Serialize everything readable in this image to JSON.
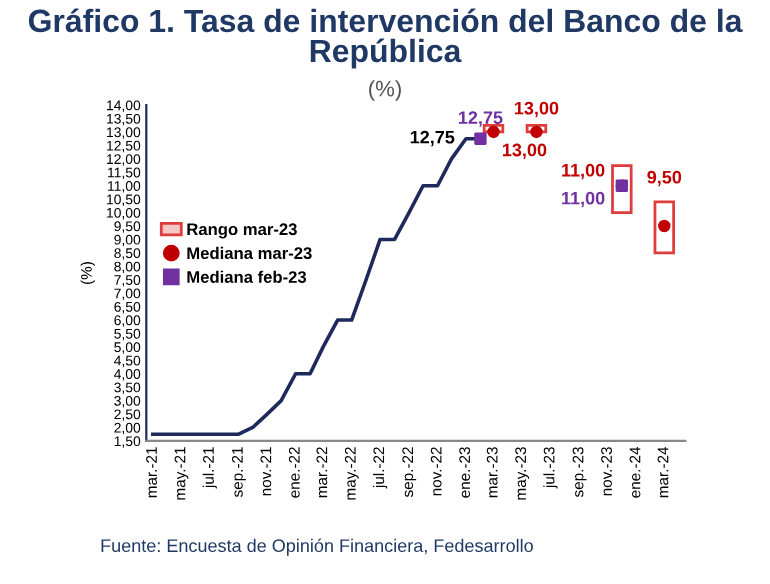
{
  "chart_data": {
    "type": "line",
    "title": "Gráfico 1. Tasa de intervención del Banco de la República",
    "subtitle": "(%)",
    "ylabel": "(%)",
    "annotations": [
      "Fuente: Encuesta de Opinión Financiera, Fedesarrollo"
    ],
    "series": [
      {
        "color": "#1f2a5c",
        "x": [
          "2021-03",
          "2021-04",
          "2021-05",
          "2021-06",
          "2021-07",
          "2021-08",
          "2021-09",
          "2021-10",
          "2021-11",
          "2021-12",
          "2022-01",
          "2022-02",
          "2022-03",
          "2022-04",
          "2022-05",
          "2022-06",
          "2022-07",
          "2022-08",
          "2022-09",
          "2022-10",
          "2022-11",
          "2022-12",
          "2023-01",
          "2023-02"
        ],
        "values": [
          1.75,
          1.75,
          1.75,
          1.75,
          1.75,
          1.75,
          1.75,
          2.0,
          2.5,
          3.0,
          4.0,
          4.0,
          5.0,
          6.0,
          6.0,
          7.5,
          9.0,
          9.0,
          10.0,
          11.0,
          11.0,
          12.0,
          12.75,
          12.75
        ],
        "value_labels": [
          null,
          null,
          null,
          null,
          null,
          null,
          null,
          null,
          null,
          null,
          null,
          null,
          null,
          null,
          null,
          null,
          null,
          null,
          null,
          null,
          null,
          null,
          "12,75",
          null
        ]
      },
      {
        "type": "bar",
        "name": "Rango mar-23",
        "color": "#e03c3c",
        "x": [
          "2023-03",
          "2023-06",
          "2023-12",
          "2024-03"
        ],
        "base": [
          13.0,
          13.0,
          10.0,
          8.5
        ],
        "values": [
          0.25,
          0.25,
          1.75,
          1.9
        ]
      },
      {
        "type": "scatter",
        "name": "Mediana mar-23",
        "color": "#c00000",
        "marker": "circle",
        "x": [
          "2023-03",
          "2023-06",
          "2023-12",
          "2024-03"
        ],
        "values": [
          13.0,
          13.0,
          11.0,
          9.5
        ],
        "value_labels": [
          "13,00",
          "13,00",
          "11,00",
          "9,50"
        ]
      },
      {
        "type": "scatter",
        "name": "Mediana feb-23",
        "color": "#7030a0",
        "marker": "square",
        "x": [
          "2023-02",
          "2023-12"
        ],
        "values": [
          12.75,
          11.0
        ],
        "value_labels": [
          "12,75",
          "11,00"
        ]
      }
    ],
    "xlim": [
      "2021-02-15",
      "2024-04-15"
    ],
    "xticks": [
      {
        "value": "2021-03",
        "label": "mar.-21"
      },
      {
        "value": "2021-05",
        "label": "may.-21"
      },
      {
        "value": "2021-07",
        "label": "jul.-21"
      },
      {
        "value": "2021-09",
        "label": "sep.-21"
      },
      {
        "value": "2021-11",
        "label": "nov.-21"
      },
      {
        "value": "2022-01",
        "label": "ene.-22"
      },
      {
        "value": "2022-03",
        "label": "mar.-22"
      },
      {
        "value": "2022-05",
        "label": "may.-22"
      },
      {
        "value": "2022-07",
        "label": "jul.-22"
      },
      {
        "value": "2022-09",
        "label": "sep.-22"
      },
      {
        "value": "2022-11",
        "label": "nov.-22"
      },
      {
        "value": "2023-01",
        "label": "ene.-23"
      },
      {
        "value": "2023-03",
        "label": "mar.-23"
      },
      {
        "value": "2023-05",
        "label": "may.-23"
      },
      {
        "value": "2023-07",
        "label": "jul.-23"
      },
      {
        "value": "2023-09",
        "label": "sep.-23"
      },
      {
        "value": "2023-11",
        "label": "nov.-23"
      },
      {
        "value": "2024-01",
        "label": "ene.-24"
      },
      {
        "value": "2024-03",
        "label": "mar.-24"
      }
    ],
    "ylim": [
      1.5,
      14.0
    ],
    "yticks": [
      {
        "value": 1.5,
        "label": "1,50"
      },
      {
        "value": 2.0,
        "label": "2,00"
      },
      {
        "value": 2.5,
        "label": "2,50"
      },
      {
        "value": 3.0,
        "label": "3,00"
      },
      {
        "value": 3.5,
        "label": "3,50"
      },
      {
        "value": 4.0,
        "label": "4,00"
      },
      {
        "value": 4.5,
        "label": "4,50"
      },
      {
        "value": 5.0,
        "label": "5,00"
      },
      {
        "value": 5.5,
        "label": "5,50"
      },
      {
        "value": 6.0,
        "label": "6,00"
      },
      {
        "value": 6.5,
        "label": "6,50"
      },
      {
        "value": 7.0,
        "label": "7,00"
      },
      {
        "value": 7.5,
        "label": "7,50"
      },
      {
        "value": 8.0,
        "label": "8,00"
      },
      {
        "value": 8.5,
        "label": "8,50"
      },
      {
        "value": 9.0,
        "label": "9,00"
      },
      {
        "value": 9.5,
        "label": "9,50"
      },
      {
        "value": 10.0,
        "label": "10,00"
      },
      {
        "value": 10.5,
        "label": "10,50"
      },
      {
        "value": 11.0,
        "label": "11,00"
      },
      {
        "value": 11.5,
        "label": "11,50"
      },
      {
        "value": 12.0,
        "label": "12,00"
      },
      {
        "value": 12.5,
        "label": "12,50"
      },
      {
        "value": 13.0,
        "label": "13,00"
      },
      {
        "value": 13.5,
        "label": "13,50"
      },
      {
        "value": 14.0,
        "label": "14,00"
      }
    ],
    "grid": false,
    "legend": "center left",
    "line_style": "solid"
  }
}
